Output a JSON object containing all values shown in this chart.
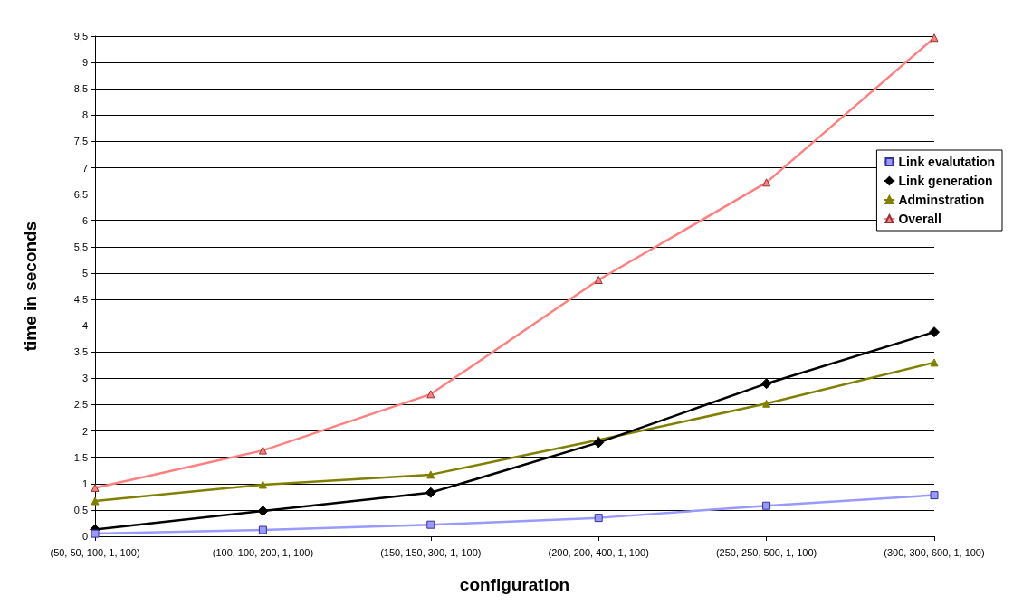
{
  "chart_data": {
    "type": "line",
    "xlabel": "configuration",
    "ylabel": "time in seconds",
    "categories": [
      "(50, 50, 100, 1, 100)",
      "(100, 100, 200, 1, 100)",
      "(150, 150, 300, 1, 100)",
      "(200, 200, 400, 1, 100)",
      "(250, 250, 500, 1, 100)",
      "(300, 300, 600, 1, 100)"
    ],
    "series": [
      {
        "name": "Link evalutation",
        "color": "#9999ff",
        "marker": "square",
        "values": [
          0.05,
          0.12,
          0.22,
          0.35,
          0.58,
          0.78
        ]
      },
      {
        "name": "Link generation",
        "color": "#000000",
        "marker": "diamond",
        "values": [
          0.13,
          0.48,
          0.83,
          1.78,
          2.9,
          3.88
        ]
      },
      {
        "name": "Adminstration",
        "color": "#808000",
        "marker": "triangle",
        "values": [
          0.67,
          0.98,
          1.17,
          1.83,
          2.52,
          3.3
        ]
      },
      {
        "name": "Overall",
        "color": "#ff8080",
        "marker": "triangle",
        "values": [
          0.92,
          1.63,
          2.7,
          4.87,
          6.72,
          9.47
        ]
      }
    ],
    "ylim": [
      0,
      9.5
    ],
    "yticks": [
      0,
      {
        "value": 0.5,
        "label": "0,5"
      },
      1,
      {
        "value": 1.5,
        "label": "1,5"
      },
      2,
      {
        "value": 2.5,
        "label": "2,5"
      },
      3,
      {
        "value": 3.5,
        "label": "3,5"
      },
      4,
      {
        "value": 4.5,
        "label": "4,5"
      },
      5,
      {
        "value": 5.5,
        "label": "5,5"
      },
      6,
      {
        "value": 6.5,
        "label": "6,5"
      },
      7,
      {
        "value": 7.5,
        "label": "7,5"
      },
      8,
      {
        "value": 8.5,
        "label": "8,5"
      },
      9,
      {
        "value": 9.5,
        "label": "9,5"
      }
    ],
    "grid": "y",
    "legend": "right",
    "line_style": "solid"
  }
}
